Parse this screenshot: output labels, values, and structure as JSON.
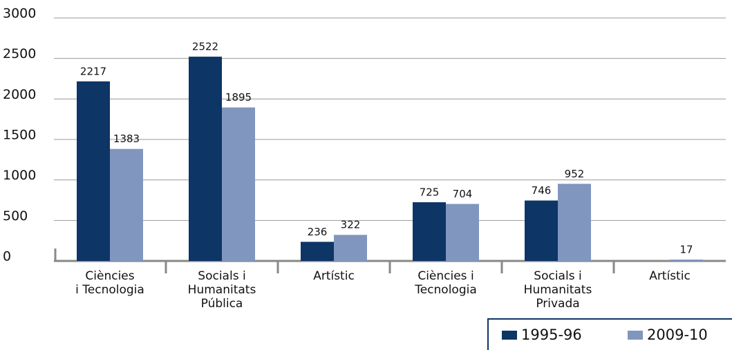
{
  "chart_data": {
    "type": "bar",
    "categories": [
      [
        "Ciències",
        "i Tecnologia"
      ],
      [
        "Socials i",
        "Humanitats",
        "Pública"
      ],
      [
        "Artístic"
      ],
      [
        "Ciències i",
        "Tecnologia"
      ],
      [
        "Socials i",
        "Humanitats",
        "Privada"
      ],
      [
        "Artístic"
      ]
    ],
    "series": [
      {
        "name": "1995-96",
        "color": "#0d3566",
        "values": [
          2217,
          2522,
          236,
          725,
          746,
          null
        ]
      },
      {
        "name": "2009-10",
        "color": "#8196bf",
        "values": [
          1383,
          1895,
          322,
          704,
          952,
          17
        ]
      }
    ],
    "ylim": [
      0,
      3000
    ],
    "yticks": [
      0,
      500,
      1000,
      1500,
      2000,
      2500,
      3000
    ],
    "grid": true
  }
}
